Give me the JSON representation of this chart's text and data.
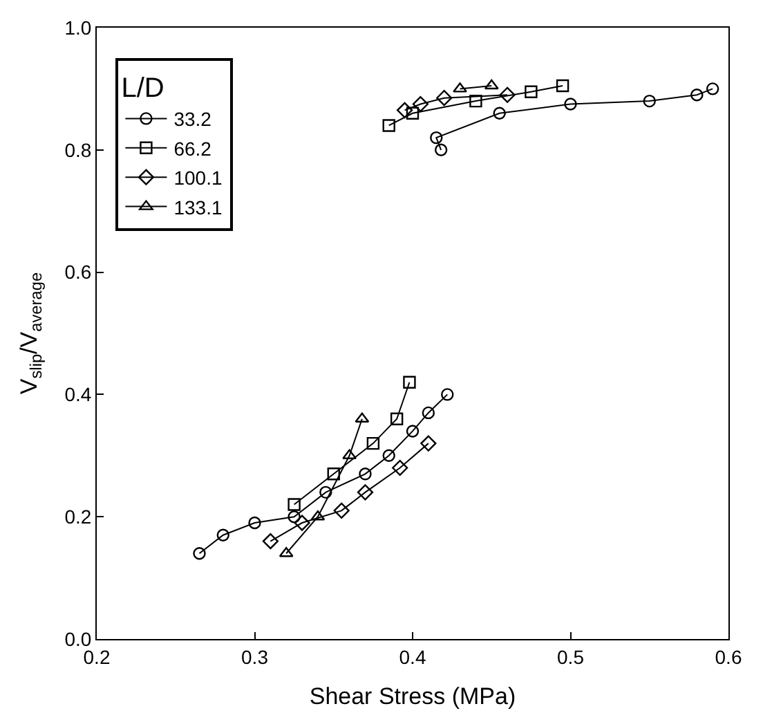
{
  "chart_data": {
    "type": "line",
    "xlabel": "Shear Stress (MPa)",
    "ylabel": "V$_{slip}$/V$_{average}$",
    "legend_title": "L/D",
    "legend": "top left",
    "xlim": [
      0.2,
      0.6
    ],
    "xticks": [
      0.2,
      0.3,
      0.4,
      0.5,
      0.6
    ],
    "ylim": [
      0.0,
      1.0
    ],
    "yticks": [
      {
        "value": 0,
        "label": "0.0"
      },
      0.2,
      0.4,
      0.6,
      0.8,
      {
        "value": 1,
        "label": "1.0"
      }
    ],
    "series": [
      {
        "name": "33.2",
        "color": "#000000",
        "marker": "circle",
        "x": [
          0.265,
          0.28,
          0.3,
          0.325,
          0.345,
          0.37,
          0.385,
          0.4,
          0.41,
          0.422,
          null,
          0.418,
          0.415,
          0.455,
          0.5,
          0.55,
          0.58,
          0.59
        ],
        "values": [
          0.14,
          0.17,
          0.19,
          0.2,
          0.24,
          0.27,
          0.3,
          0.34,
          0.37,
          0.4,
          null,
          0.8,
          0.82,
          0.86,
          0.875,
          0.88,
          0.89,
          0.9
        ]
      },
      {
        "name": "66.2",
        "color": "#000000",
        "marker": "square",
        "x": [
          0.325,
          0.35,
          0.375,
          0.39,
          0.398,
          null,
          0.385,
          0.4,
          0.44,
          0.475,
          0.495
        ],
        "values": [
          0.22,
          0.27,
          0.32,
          0.36,
          0.42,
          null,
          0.84,
          0.86,
          0.88,
          0.895,
          0.905
        ]
      },
      {
        "name": "100.1",
        "color": "#000000",
        "marker": "diamond",
        "x": [
          0.31,
          0.33,
          0.355,
          0.37,
          0.392,
          0.41,
          null,
          0.395,
          0.405,
          0.42,
          0.46
        ],
        "values": [
          0.16,
          0.19,
          0.21,
          0.24,
          0.28,
          0.32,
          null,
          0.865,
          0.875,
          0.885,
          0.89
        ]
      },
      {
        "name": "133.1",
        "color": "#000000",
        "marker": "triangle",
        "x": [
          0.32,
          0.34,
          0.36,
          0.368,
          null,
          0.43,
          0.45
        ],
        "values": [
          0.14,
          0.2,
          0.3,
          0.36,
          null,
          0.9,
          0.905
        ]
      }
    ]
  }
}
